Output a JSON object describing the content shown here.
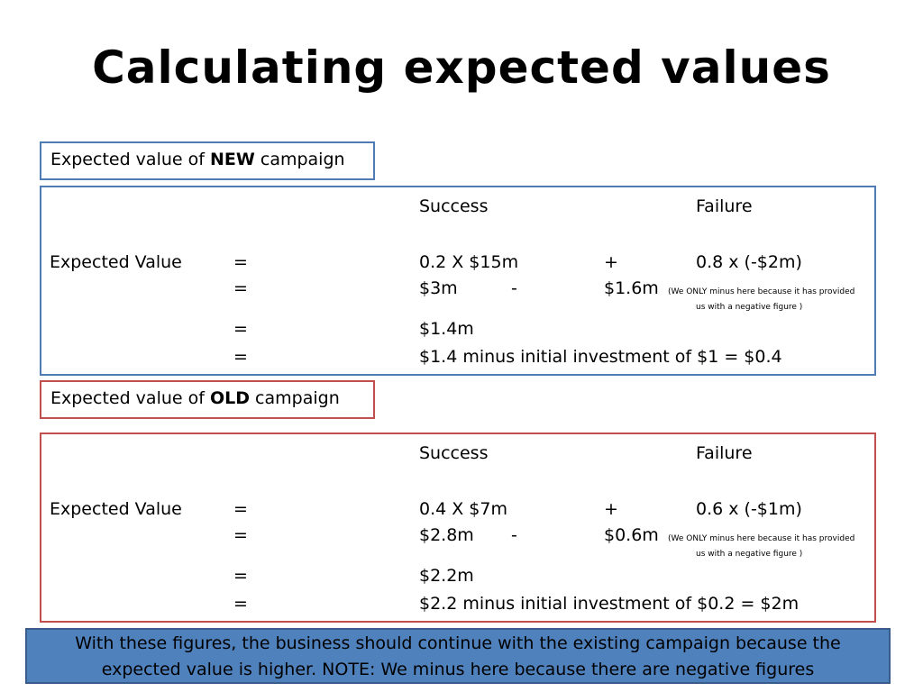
{
  "slide": {
    "title": "Calculating expected values"
  },
  "new_campaign": {
    "label_prefix": "Expected value of ",
    "label_bold": "NEW",
    "label_suffix": " campaign",
    "col_success": "Success",
    "col_failure": "Failure",
    "row_label": "Expected Value",
    "eq1": "=",
    "success_expr": "0.2  X  $15m",
    "plus": "+",
    "failure_expr": "0.8  x  (-$2m)",
    "eq2": "=",
    "success_value": "$3m",
    "minus": "-",
    "failure_value": "$1.6m",
    "note_line1": "(We ONLY minus here because it has provided",
    "note_line2": "us with a negative figure )",
    "eq3": "=",
    "net_value": "$1.4m",
    "eq4": "=",
    "final_line": "$1.4 minus initial investment of $1 = $0.4"
  },
  "old_campaign": {
    "label_prefix": "Expected value of ",
    "label_bold": "OLD",
    "label_suffix": " campaign",
    "col_success": "Success",
    "col_failure": "Failure",
    "row_label": "Expected Value",
    "eq1": "=",
    "success_expr": "0.4  X  $7m",
    "plus": "+",
    "failure_expr": "0.6  x  (-$1m)",
    "eq2": "=",
    "success_value": "$2.8m",
    "minus": "-",
    "failure_value": "$0.6m",
    "note_line1": "(We ONLY minus here because it has provided",
    "note_line2": "us with a negative figure )",
    "eq3": "=",
    "net_value": "$2.2m",
    "eq4": "=",
    "final_line": "$2.2 minus initial investment of $0.2 = $2m"
  },
  "conclusion": {
    "line1": "With these figures, the business should continue with the existing campaign because the",
    "line2": "expected value is higher. NOTE: We minus here because there are negative figures"
  }
}
